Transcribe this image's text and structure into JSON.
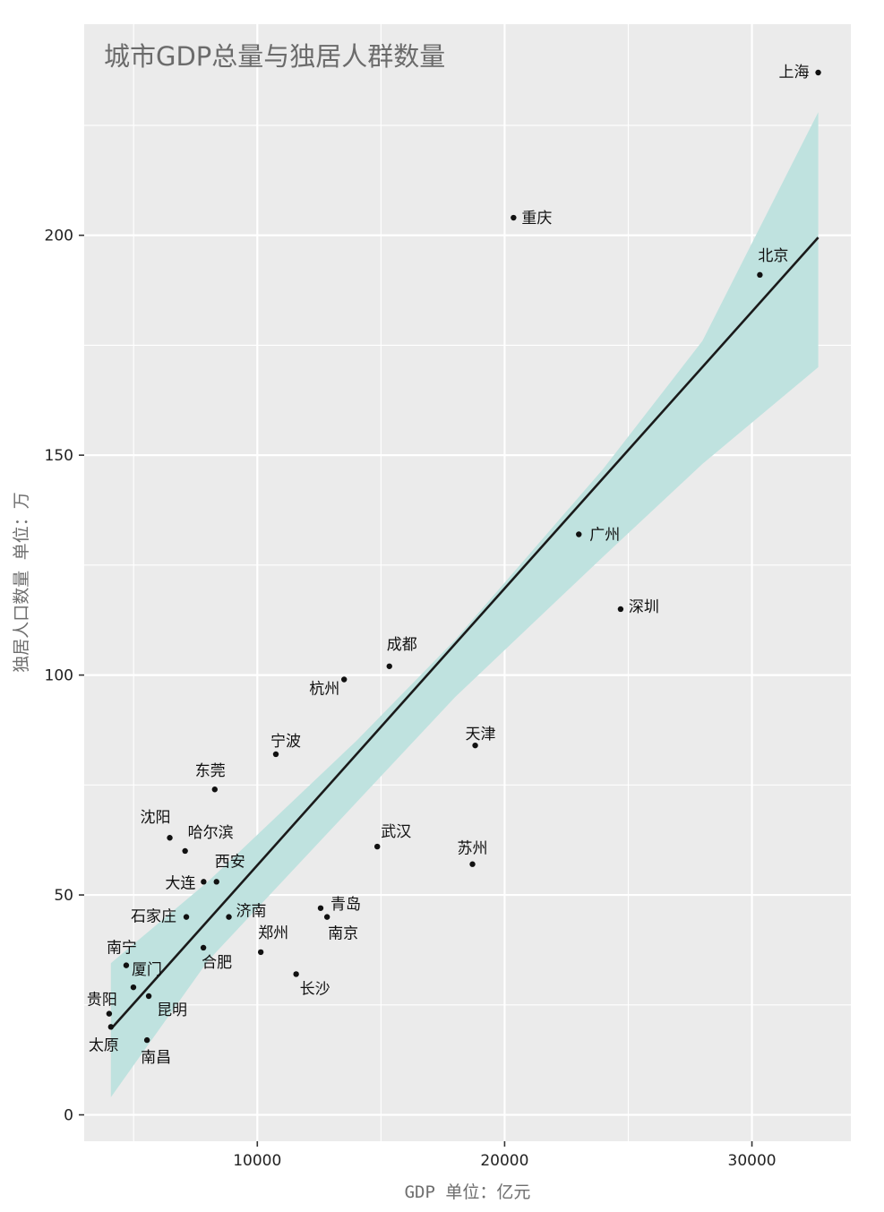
{
  "chart_data": {
    "type": "scatter",
    "title": "城市GDP总量与独居人群数量",
    "xlabel": "GDP 单位：亿元",
    "ylabel": "独居人口数量 单位：万",
    "xlim": [
      3000,
      34000
    ],
    "ylim": [
      -6,
      248
    ],
    "x_ticks": [
      10000,
      20000,
      30000
    ],
    "y_ticks": [
      0,
      50,
      100,
      150,
      200
    ],
    "grid": true,
    "points": [
      {
        "name": "上海",
        "x": 32680,
        "y": 237
      },
      {
        "name": "重庆",
        "x": 20360,
        "y": 204
      },
      {
        "name": "北京",
        "x": 30320,
        "y": 191
      },
      {
        "name": "广州",
        "x": 23000,
        "y": 132
      },
      {
        "name": "深圳",
        "x": 24690,
        "y": 115
      },
      {
        "name": "成都",
        "x": 15340,
        "y": 102
      },
      {
        "name": "杭州",
        "x": 13510,
        "y": 99
      },
      {
        "name": "天津",
        "x": 18810,
        "y": 84
      },
      {
        "name": "宁波",
        "x": 10750,
        "y": 82
      },
      {
        "name": "东莞",
        "x": 8280,
        "y": 74
      },
      {
        "name": "沈阳",
        "x": 6460,
        "y": 63
      },
      {
        "name": "武汉",
        "x": 14850,
        "y": 61
      },
      {
        "name": "哈尔滨",
        "x": 7080,
        "y": 60
      },
      {
        "name": "苏州",
        "x": 18700,
        "y": 57
      },
      {
        "name": "大连",
        "x": 7830,
        "y": 53
      },
      {
        "name": "西安",
        "x": 8350,
        "y": 53
      },
      {
        "name": "青岛",
        "x": 12560,
        "y": 47
      },
      {
        "name": "南京",
        "x": 12820,
        "y": 45
      },
      {
        "name": "济南",
        "x": 8850,
        "y": 45
      },
      {
        "name": "石家庄",
        "x": 7130,
        "y": 45
      },
      {
        "name": "合肥",
        "x": 7820,
        "y": 38
      },
      {
        "name": "郑州",
        "x": 10140,
        "y": 37
      },
      {
        "name": "南宁",
        "x": 4700,
        "y": 34
      },
      {
        "name": "长沙",
        "x": 11570,
        "y": 32
      },
      {
        "name": "厦门",
        "x": 4990,
        "y": 29
      },
      {
        "name": "昆明",
        "x": 5610,
        "y": 27
      },
      {
        "name": "贵阳",
        "x": 4010,
        "y": 23
      },
      {
        "name": "太原",
        "x": 4080,
        "y": 20
      },
      {
        "name": "南昌",
        "x": 5540,
        "y": 17
      }
    ],
    "trend_line": {
      "x": [
        4080,
        32680
      ],
      "y": [
        19.5,
        199.5
      ]
    },
    "confidence_band": {
      "x": [
        4080,
        8000,
        14000,
        18000,
        24000,
        28000,
        32680
      ],
      "upper": [
        34.5,
        53,
        85,
        108,
        147,
        176,
        228
      ],
      "lower": [
        4,
        35,
        71,
        95,
        127,
        148,
        170
      ]
    },
    "colors": {
      "panel": "#ebebeb",
      "band": "#bfe2df",
      "line": "#1a1a1a",
      "point": "#111111"
    }
  }
}
